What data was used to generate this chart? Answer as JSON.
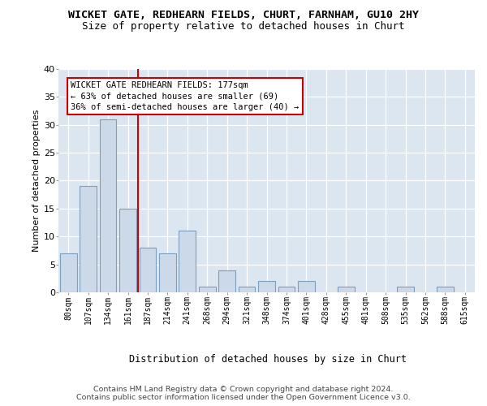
{
  "title": "WICKET GATE, REDHEARN FIELDS, CHURT, FARNHAM, GU10 2HY",
  "subtitle": "Size of property relative to detached houses in Churt",
  "xlabel": "Distribution of detached houses by size in Churt",
  "ylabel": "Number of detached properties",
  "categories": [
    "80sqm",
    "107sqm",
    "134sqm",
    "161sqm",
    "187sqm",
    "214sqm",
    "241sqm",
    "268sqm",
    "294sqm",
    "321sqm",
    "348sqm",
    "374sqm",
    "401sqm",
    "428sqm",
    "455sqm",
    "481sqm",
    "508sqm",
    "535sqm",
    "562sqm",
    "588sqm",
    "615sqm"
  ],
  "values": [
    7,
    19,
    31,
    15,
    8,
    7,
    11,
    1,
    4,
    1,
    2,
    1,
    2,
    0,
    1,
    0,
    0,
    1,
    0,
    1,
    0
  ],
  "bar_color": "#ccd9e8",
  "bar_edge_color": "#7a9fbf",
  "vline_color": "#cc0000",
  "annotation_text": "WICKET GATE REDHEARN FIELDS: 177sqm\n← 63% of detached houses are smaller (69)\n36% of semi-detached houses are larger (40) →",
  "ylim": [
    0,
    40
  ],
  "yticks": [
    0,
    5,
    10,
    15,
    20,
    25,
    30,
    35,
    40
  ],
  "plot_bg_color": "#dce6f0",
  "footer_line1": "Contains HM Land Registry data © Crown copyright and database right 2024.",
  "footer_line2": "Contains public sector information licensed under the Open Government Licence v3.0."
}
